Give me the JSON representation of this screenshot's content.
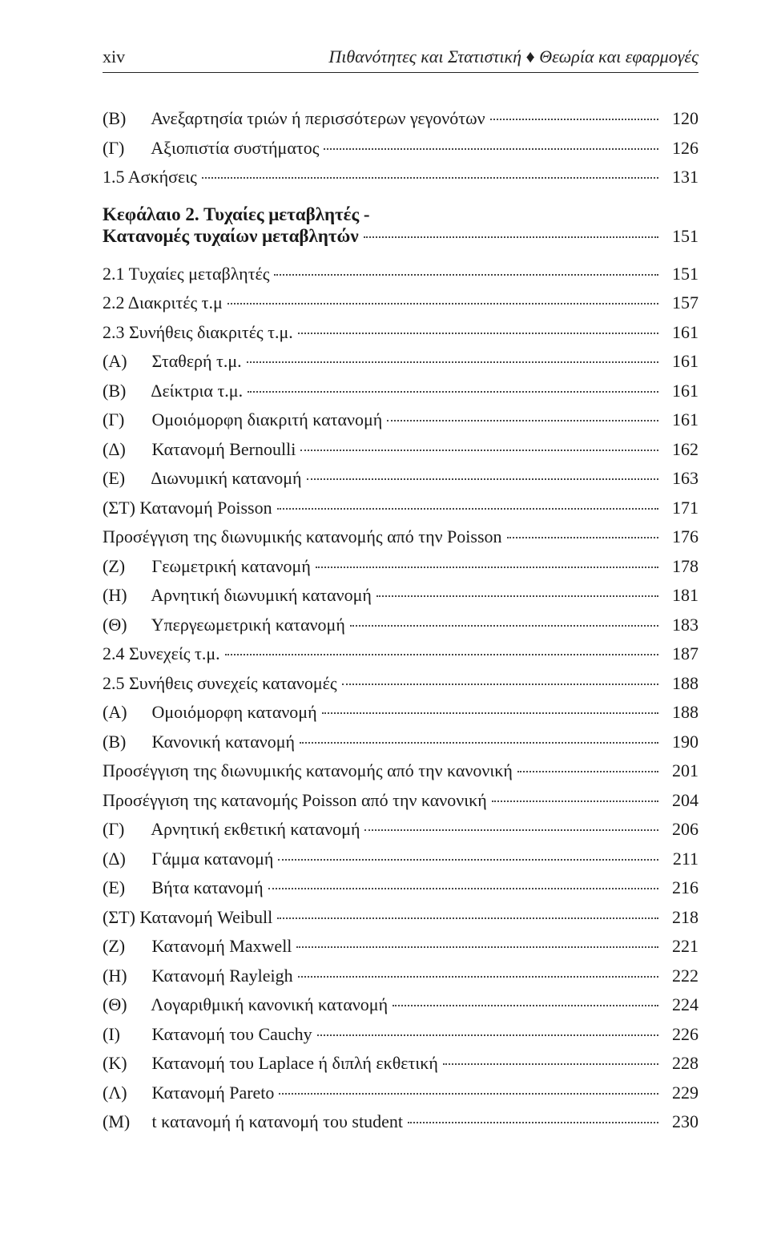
{
  "colors": {
    "text": "#1a1a1a",
    "rule": "#222222",
    "dots": "#444444",
    "background": "#ffffff"
  },
  "typography": {
    "body_fontsize_pt": 16,
    "header_fontsize_pt": 16,
    "font_family": "Georgia, Times New Roman, serif"
  },
  "header": {
    "page_number": "xiv",
    "book_title": "Πιθανότητες και Στατιστική ♦ Θεωρία και εφαρμογές"
  },
  "toc": [
    {
      "level": "subsub",
      "prefix": "(B)",
      "title": "Ανεξαρτησία τριών ή περισσότερων γεγονότων",
      "page": "120"
    },
    {
      "level": "subsub",
      "prefix": "(Γ)",
      "title": "Αξιοπιστία συστήματος",
      "page": "126"
    },
    {
      "level": "sub",
      "prefix": "1.5",
      "title": "Ασκήσεις",
      "page": "131"
    },
    {
      "level": "chapter",
      "title": "Κεφάλαιο 2. Τυχαίες μεταβλητές -"
    },
    {
      "level": "chapter-sub",
      "title": "Κατανομές τυχαίων μεταβλητών",
      "page": "151"
    },
    {
      "level": "sub",
      "prefix": "2.1",
      "title": "Τυχαίες μεταβλητές",
      "page": "151"
    },
    {
      "level": "sub",
      "prefix": "2.2",
      "title": "Διακριτές τ.μ",
      "page": "157"
    },
    {
      "level": "sub",
      "prefix": "2.3",
      "title": "Συνήθεις διακριτές τ.μ.",
      "page": "161"
    },
    {
      "level": "subsub",
      "prefix": "(A)",
      "title": "Σταθερή τ.μ.",
      "page": "161"
    },
    {
      "level": "subsub",
      "prefix": "(B)",
      "title": "Δείκτρια τ.μ.",
      "page": "161"
    },
    {
      "level": "subsub",
      "prefix": "(Γ)",
      "title": "Ομοιόμορφη διακριτή κατανομή",
      "page": "161"
    },
    {
      "level": "subsub",
      "prefix": "(Δ)",
      "title": "Κατανομή Bernoulli",
      "page": "162"
    },
    {
      "level": "subsub",
      "prefix": "(E)",
      "title": "Διωνυμική κατανομή",
      "page": "163"
    },
    {
      "level": "subsub",
      "prefix": "(ΣΤ)",
      "title": "Κατανομή Poisson",
      "page": "171",
      "tight_prefix": true
    },
    {
      "level": "subsub",
      "prefix": "",
      "title": "Προσέγγιση της διωνυμικής κατανομής από την Poisson",
      "page": "176"
    },
    {
      "level": "subsub",
      "prefix": "(Z)",
      "title": "Γεωμετρική κατανομή",
      "page": "178"
    },
    {
      "level": "subsub",
      "prefix": "(H)",
      "title": "Αρνητική διωνυμική κατανομή",
      "page": "181"
    },
    {
      "level": "subsub",
      "prefix": "(Θ)",
      "title": "Υπεργεωμετρική κατανομή",
      "page": "183"
    },
    {
      "level": "sub",
      "prefix": "2.4",
      "title": "Συνεχείς τ.μ.",
      "page": "187"
    },
    {
      "level": "sub",
      "prefix": "2.5",
      "title": "Συνήθεις συνεχείς κατανομές",
      "page": "188"
    },
    {
      "level": "subsub",
      "prefix": "(A)",
      "title": "Ομοιόμορφη κατανομή",
      "page": "188"
    },
    {
      "level": "subsub",
      "prefix": "(B)",
      "title": "Κανονική κατανομή",
      "page": "190"
    },
    {
      "level": "subsub",
      "prefix": "",
      "title": "Προσέγγιση της διωνυμικής κατανομής από την κανονική",
      "page": "201"
    },
    {
      "level": "subsub",
      "prefix": "",
      "title": "Προσέγγιση της κατανομής Poisson από την κανονική",
      "page": "204"
    },
    {
      "level": "subsub",
      "prefix": "(Γ)",
      "title": "Αρνητική εκθετική κατανομή",
      "page": "206"
    },
    {
      "level": "subsub",
      "prefix": "(Δ)",
      "title": "Γάμμα κατανομή",
      "page": "211"
    },
    {
      "level": "subsub",
      "prefix": "(E)",
      "title": "Βήτα κατανομή",
      "page": "216"
    },
    {
      "level": "subsub",
      "prefix": "(ΣΤ)",
      "title": "Κατανομή Weibull",
      "page": "218",
      "tight_prefix": true
    },
    {
      "level": "subsub",
      "prefix": "(Z)",
      "title": "Κατανομή Maxwell",
      "page": "221"
    },
    {
      "level": "subsub",
      "prefix": "(H)",
      "title": "Κατανομή Rayleigh",
      "page": "222"
    },
    {
      "level": "subsub",
      "prefix": "(Θ)",
      "title": "Λογαριθμική κανονική κατανομή",
      "page": "224"
    },
    {
      "level": "subsub",
      "prefix": "(I)",
      "title": "Κατανομή του Cauchy",
      "page": "226"
    },
    {
      "level": "subsub",
      "prefix": "(K)",
      "title": "Κατανομή του Laplace ή διπλή εκθετική",
      "page": "228"
    },
    {
      "level": "subsub",
      "prefix": "(Λ)",
      "title": "Κατανομή Pareto",
      "page": "229"
    },
    {
      "level": "subsub",
      "prefix": "(M)",
      "title": "t κατανομή ή κατανομή του student",
      "page": "230"
    }
  ]
}
